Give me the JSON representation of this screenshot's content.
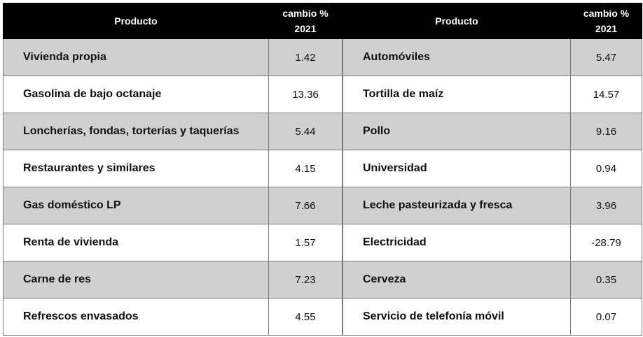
{
  "header": {
    "product": "Producto",
    "change": "cambio %",
    "year": "2021"
  },
  "left_table": [
    {
      "product": "Vivienda propia",
      "change": "1.42"
    },
    {
      "product": "Gasolina de bajo octanaje",
      "change": "13.36"
    },
    {
      "product": "Loncherías, fondas, torterías y taquerías",
      "change": "5.44"
    },
    {
      "product": "Restaurantes y similares",
      "change": "4.15"
    },
    {
      "product": "Gas doméstico LP",
      "change": "7.66"
    },
    {
      "product": "Renta de vivienda",
      "change": "1.57"
    },
    {
      "product": "Carne de res",
      "change": "7.23"
    },
    {
      "product": "Refrescos envasados",
      "change": "4.55"
    }
  ],
  "right_table": [
    {
      "product": "Automóviles",
      "change": "5.47"
    },
    {
      "product": "Tortilla de maíz",
      "change": "14.57"
    },
    {
      "product": "Pollo",
      "change": "9.16"
    },
    {
      "product": "Universidad",
      "change": "0.94"
    },
    {
      "product": "Leche pasteurizada y fresca",
      "change": "3.96"
    },
    {
      "product": "Electricidad",
      "change": "-28.79"
    },
    {
      "product": "Cerveza",
      "change": "0.35"
    },
    {
      "product": "Servicio de telefonía móvil",
      "change": "0.07"
    }
  ],
  "colors": {
    "header_bg": "#000000",
    "header_text": "#ffffff",
    "shaded_row": "#d0d0d0",
    "plain_row": "#ffffff"
  }
}
